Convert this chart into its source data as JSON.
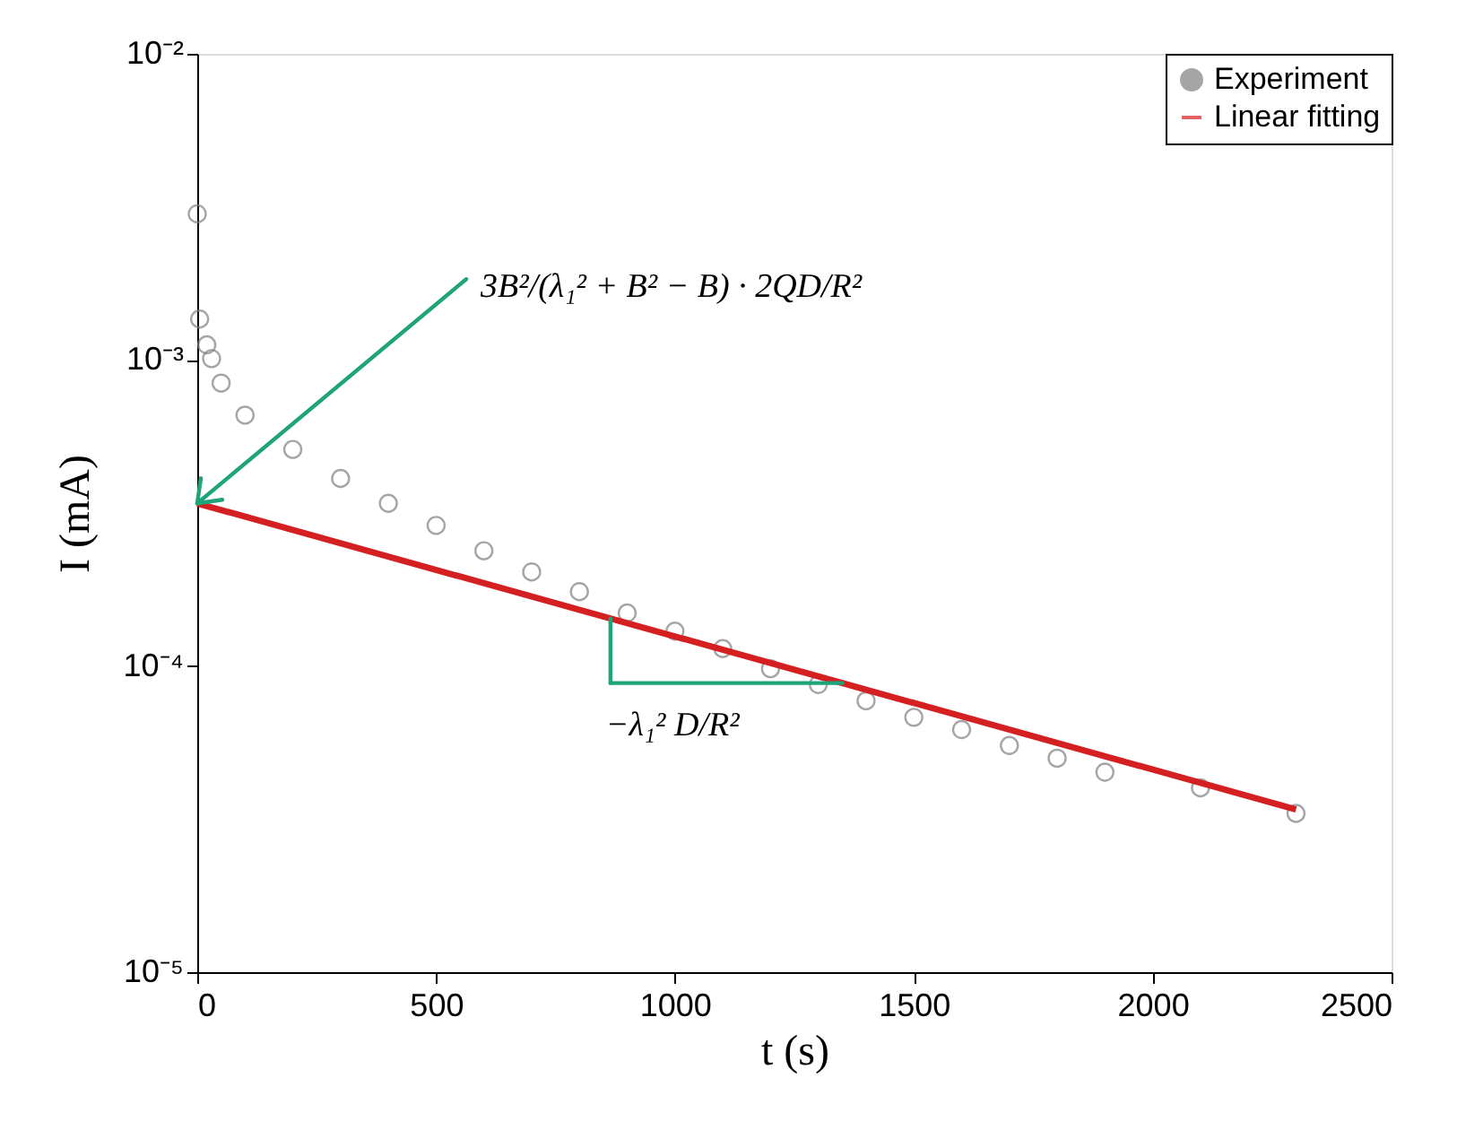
{
  "chart_data": {
    "type": "scatter",
    "xlabel": "t (s)",
    "ylabel": "I (mA)",
    "xlim": [
      0,
      2500
    ],
    "xticks": [
      0,
      500,
      1000,
      1500,
      2000,
      2500
    ],
    "ylim": [
      1e-05,
      0.01
    ],
    "yticks": [
      {
        "value": 0.01,
        "label": "10⁻²"
      },
      {
        "value": 0.001,
        "label": "10⁻³"
      },
      {
        "value": 0.0001,
        "label": "10⁻⁴"
      },
      {
        "value": 1e-05,
        "label": "10⁻⁵"
      }
    ],
    "log": "y",
    "grid": false,
    "legend": "top right",
    "series": [
      {
        "name": "Experiment",
        "type": "scatter",
        "marker": "circle",
        "color": "#808080",
        "x": [
          0,
          5,
          20,
          30,
          50,
          100,
          200,
          300,
          400,
          500,
          600,
          700,
          800,
          900,
          1000,
          1100,
          1200,
          1300,
          1400,
          1500,
          1600,
          1700,
          1800,
          1900,
          2100,
          2300
        ],
        "values": [
          0.003,
          0.00136,
          0.00112,
          0.00101,
          0.00084,
          0.00066,
          0.00051,
          0.00041,
          0.00034,
          0.000288,
          0.000238,
          0.000203,
          0.000175,
          0.000149,
          0.00013,
          0.000114,
          9.8e-05,
          8.7e-05,
          7.7e-05,
          6.8e-05,
          6.2e-05,
          5.5e-05,
          5e-05,
          4.5e-05,
          4e-05,
          3.3e-05
        ]
      },
      {
        "name": "Linear fitting",
        "type": "line",
        "color": "#d42020",
        "line_style": "solid",
        "x": [
          0,
          2300
        ],
        "values": [
          0.00034,
          3.4e-05
        ]
      }
    ],
    "annotations": [
      {
        "text": "3B²/(λ₁² + B² − B) · 2QD/R²",
        "x": 0,
        "y": 0.00034
      },
      {
        "text": "−λ₁² D/R²",
        "x": 865,
        "y": 0.000143
      }
    ]
  }
}
